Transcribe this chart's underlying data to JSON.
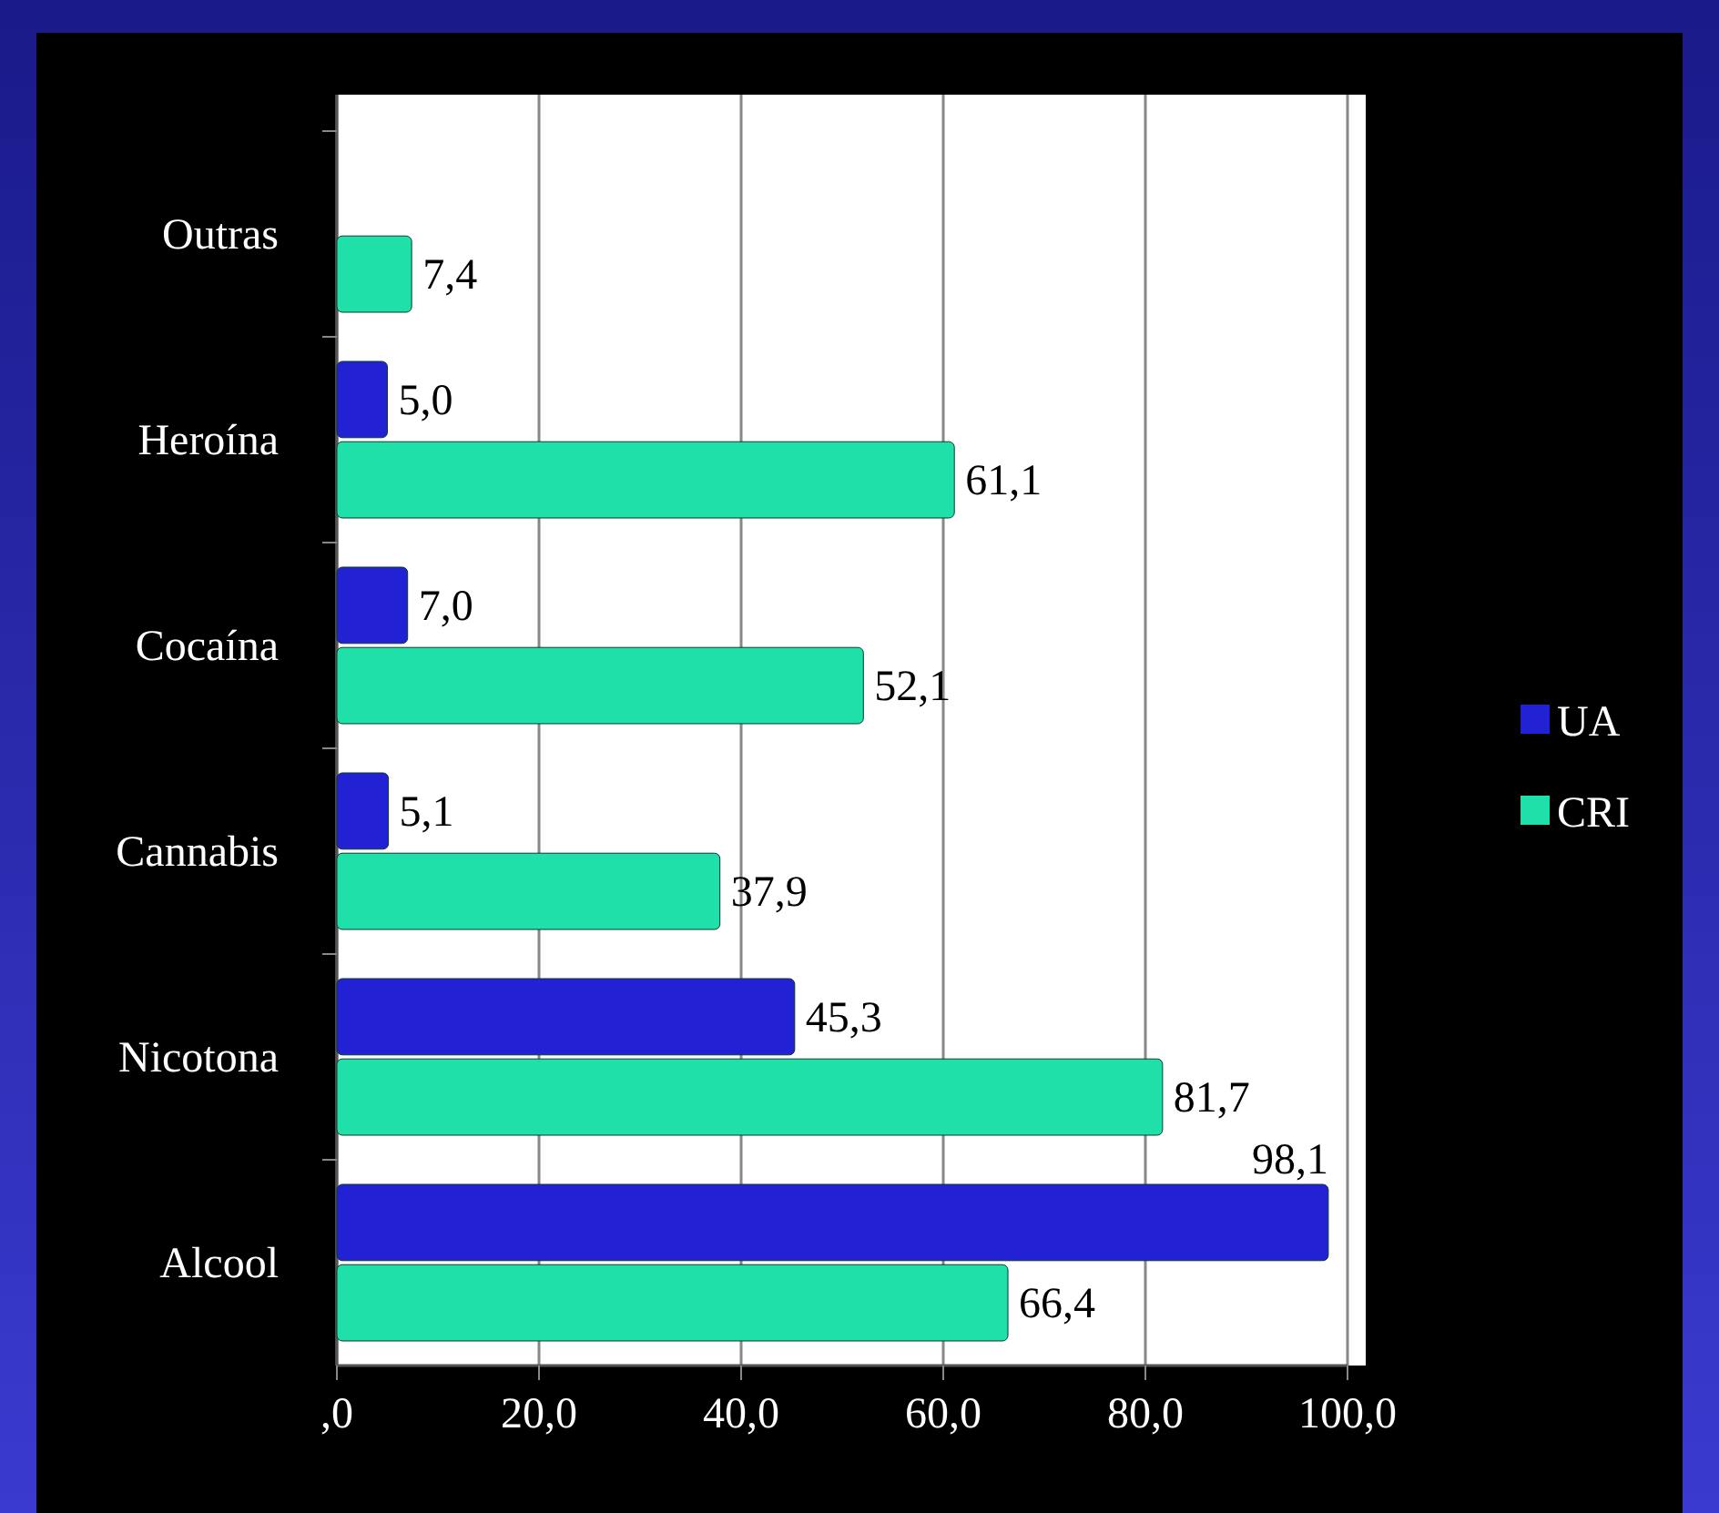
{
  "chart_data": {
    "type": "bar",
    "orientation": "horizontal",
    "categories": [
      "Outras",
      "Heroína",
      "Cocaína",
      "Cannabis",
      "Nicotona",
      "Alcool"
    ],
    "series": [
      {
        "name": "UA",
        "color": "#2222d4",
        "values": [
          null,
          5.0,
          7.0,
          5.1,
          45.3,
          98.1
        ],
        "value_labels": [
          null,
          "5,0",
          "7,0",
          "5,1",
          "45,3",
          "98,1"
        ]
      },
      {
        "name": "CRI",
        "color": "#1ee0a8",
        "values": [
          7.4,
          61.1,
          52.1,
          37.9,
          81.7,
          66.4
        ],
        "value_labels": [
          "7,4",
          "61,1",
          "52,1",
          "37,9",
          "81,7",
          "66,4"
        ]
      }
    ],
    "xlim": [
      0,
      100
    ],
    "xticks": [
      {
        "value": 0,
        "label": ",0"
      },
      {
        "value": 20,
        "label": "20,0"
      },
      {
        "value": 40,
        "label": "40,0"
      },
      {
        "value": 60,
        "label": "60,0"
      },
      {
        "value": 80,
        "label": "80,0"
      },
      {
        "value": 100,
        "label": "100,0"
      }
    ],
    "grid": "x",
    "legend": "right"
  }
}
